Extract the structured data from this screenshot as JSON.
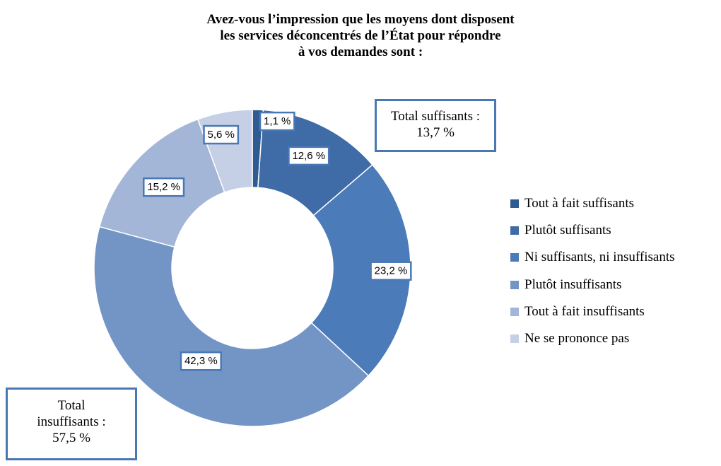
{
  "title_lines": [
    "Avez-vous l’impression que les moyens dont disposent",
    "les services déconcentrés de l’État pour répondre",
    "à vos demandes sont :"
  ],
  "chart_data": {
    "type": "donut",
    "title": "Avez-vous l’impression que les moyens dont disposent les services déconcentrés de l’État pour répondre à vos demandes sont :",
    "categories": [
      "Tout à fait suffisants",
      "Plutôt suffisants",
      "Ni suffisants, ni insuffisants",
      "Plutôt insuffisants",
      "Tout à fait insuffisants",
      "Ne se prononce pas"
    ],
    "values": [
      1.1,
      12.6,
      23.2,
      42.3,
      15.2,
      5.6
    ],
    "value_labels": [
      "1,1 %",
      "12,6 %",
      "23,2 %",
      "42,3 %",
      "15,2 %",
      "5,6 %"
    ],
    "colors": [
      "#2e5b92",
      "#3f6ba6",
      "#4b7bb8",
      "#7295c6",
      "#a3b6d7",
      "#c5cfe5"
    ],
    "legend_position": "right",
    "annotations": [
      {
        "id": "sufficient",
        "lines": [
          "Total suffisants :",
          "13,7 %"
        ]
      },
      {
        "id": "insufficient",
        "lines": [
          "Total",
          "insuffisants :",
          "57,5 %"
        ]
      }
    ]
  }
}
